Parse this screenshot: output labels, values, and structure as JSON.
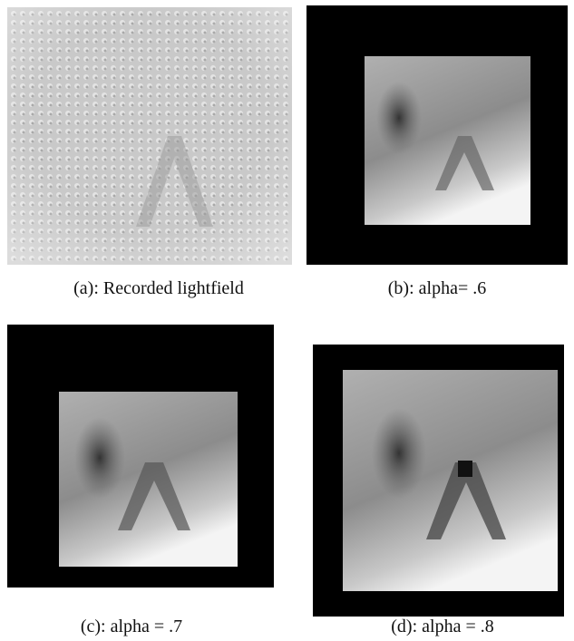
{
  "panels": [
    {
      "caption": "(a): Recorded lightfield"
    },
    {
      "caption": "(b): alpha= .6"
    },
    {
      "caption": "(c): alpha = .7"
    },
    {
      "caption": "(d): alpha = .8"
    }
  ]
}
